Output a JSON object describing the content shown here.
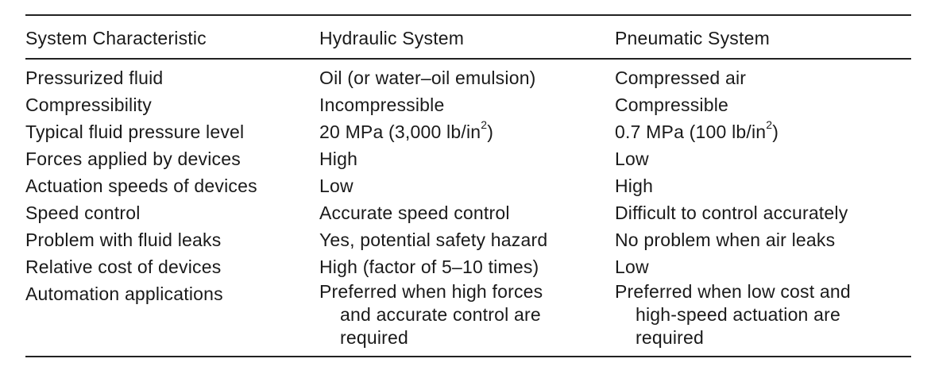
{
  "table": {
    "headers": [
      "System Characteristic",
      "Hydraulic System",
      "Pneumatic System"
    ],
    "rows": [
      {
        "characteristic": "Pressurized fluid",
        "hydraulic": "Oil (or water–oil emulsion)",
        "pneumatic": "Compressed air"
      },
      {
        "characteristic": "Compressibility",
        "hydraulic": "Incompressible",
        "pneumatic": "Compressible"
      },
      {
        "characteristic": "Typical fluid pressure level",
        "hydraulic_pre": "20 MPa (3,000 lb/in",
        "hydraulic_sup": "2",
        "hydraulic_post": ")",
        "pneumatic_pre": "0.7 MPa (100 lb/in",
        "pneumatic_sup": "2",
        "pneumatic_post": ")"
      },
      {
        "characteristic": "Forces applied by devices",
        "hydraulic": "High",
        "pneumatic": "Low"
      },
      {
        "characteristic": "Actuation speeds of devices",
        "hydraulic": "Low",
        "pneumatic": "High"
      },
      {
        "characteristic": "Speed control",
        "hydraulic": "Accurate speed control",
        "pneumatic": "Difficult to control accurately"
      },
      {
        "characteristic": "Problem with fluid leaks",
        "hydraulic": "Yes, potential safety hazard",
        "pneumatic": "No problem when air leaks"
      },
      {
        "characteristic": "Relative cost of devices",
        "hydraulic": "High (factor of 5–10 times)",
        "pneumatic": "Low"
      },
      {
        "characteristic": "Automation applications",
        "hydraulic_lines": [
          "Preferred when high forces",
          "and accurate control are",
          "required"
        ],
        "pneumatic_lines": [
          "Preferred when low cost and",
          "high-speed actuation are",
          "required"
        ]
      }
    ]
  }
}
